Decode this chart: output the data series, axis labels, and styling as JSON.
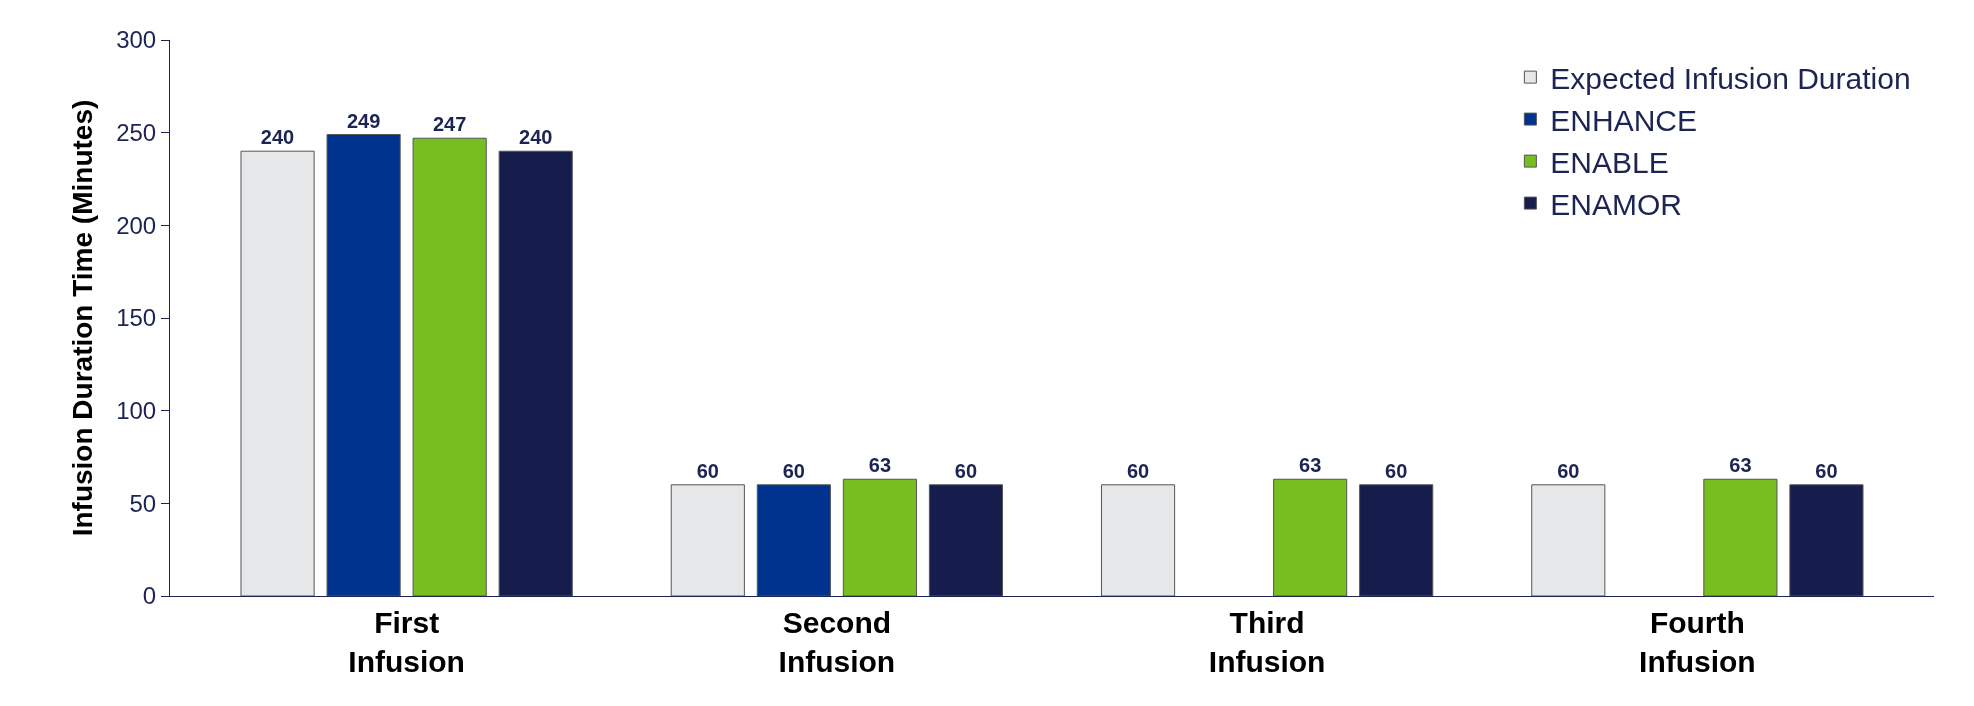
{
  "chart_data": {
    "type": "bar",
    "ylabel": "Infusion Duration Time (Minutes)",
    "categories": [
      "First Infusion",
      "Second Infusion",
      "Third Infusion",
      "Fourth Infusion"
    ],
    "series": [
      {
        "name": "Expected Infusion Duration",
        "color": "#e5e7e9",
        "values": [
          240,
          60,
          60,
          60
        ]
      },
      {
        "name": "ENHANCE",
        "color": "#00338d",
        "values": [
          249,
          60,
          null,
          null
        ]
      },
      {
        "name": "ENABLE",
        "color": "#78be20",
        "values": [
          247,
          63,
          63,
          63
        ]
      },
      {
        "name": "ENAMOR",
        "color": "#161d4c",
        "values": [
          240,
          60,
          60,
          60
        ]
      }
    ],
    "ylim": [
      0,
      300
    ],
    "yticks": [
      0,
      50,
      100,
      150,
      200,
      250,
      300
    ],
    "legend": "top right",
    "data_labels": true
  }
}
